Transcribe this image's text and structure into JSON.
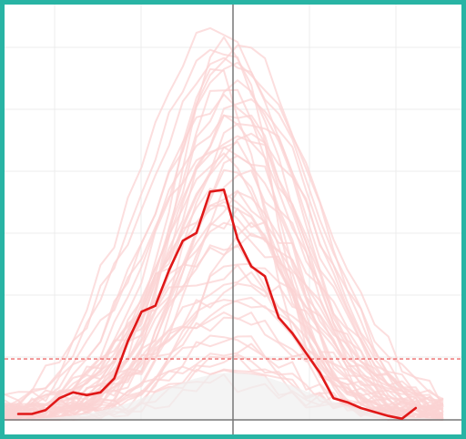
{
  "chart_data": {
    "type": "line",
    "title": "",
    "xlabel": "",
    "ylabel": "",
    "grid": true,
    "xlim": [
      0,
      100
    ],
    "ylim": [
      0,
      100
    ],
    "center_x": 50,
    "threshold_y": 15.5,
    "colors": {
      "main": "#e01818",
      "background_series": "#fbd3d3",
      "threshold": "#e84a4a",
      "axis": "#777777",
      "grid": "#ececec",
      "envelope": "#efefef"
    },
    "x": [
      3,
      6,
      9,
      12,
      15,
      18,
      21,
      24,
      27,
      30,
      33,
      36,
      39,
      42,
      45,
      48,
      51,
      54,
      57,
      60,
      63,
      66,
      69,
      72,
      75,
      78,
      81,
      84,
      87,
      90,
      93,
      96
    ],
    "series": [
      {
        "values": [
          1.5,
          1.5,
          2.5,
          5.5,
          7.0,
          6.3,
          7.0,
          10.5,
          20.0,
          27.5,
          29.0,
          38.0,
          45.5,
          47.5,
          58.0,
          58.5,
          46.0,
          39.0,
          36.5,
          26.0,
          22.0,
          17.0,
          12.0,
          5.5,
          4.5,
          3.0,
          2.0,
          1.0,
          0.3,
          3.0,
          null,
          null
        ]
      }
    ]
  }
}
